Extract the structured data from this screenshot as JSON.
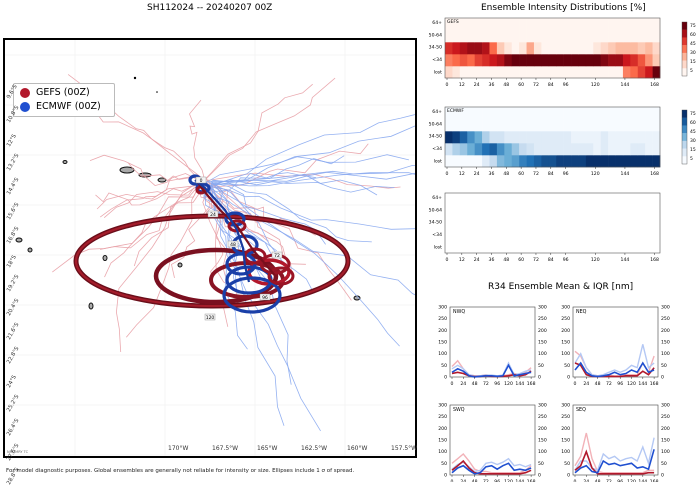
{
  "map": {
    "title": "SH112024 -- 20240207 00Z",
    "legend": [
      {
        "label": "GEFS (00Z)",
        "color": "#b2182b"
      },
      {
        "label": "ECMWF (00Z)",
        "color": "#1f4fd0"
      }
    ],
    "lat_labels": [
      "9.6°S",
      "10.8°S",
      "12°S",
      "13.2°S",
      "14.4°S",
      "15.6°S",
      "16.8°S",
      "18°S",
      "19.2°S",
      "20.4°S",
      "21.6°S",
      "22.8°S",
      "24°S",
      "25.2°S",
      "26.4°S",
      "27.6°S",
      "28.8°S"
    ],
    "lon_labels": [
      "170°W",
      "167.5°W",
      "165°W",
      "162.5°W",
      "160°W",
      "157.5°W"
    ],
    "track_hour_labels": [
      "0",
      "24",
      "48",
      "72",
      "96",
      "120"
    ],
    "watermark": "NRL/MRY TC"
  },
  "intensity": {
    "title": "Ensemble Intensity Distributions [%]",
    "y_labels": [
      "64+",
      "50-64",
      "34-50",
      "<34",
      "lost"
    ],
    "x_ticks": [
      "0",
      "12",
      "24",
      "36",
      "48",
      "60",
      "72",
      "84",
      "96",
      "120",
      "144",
      "168"
    ],
    "panels": [
      {
        "name": "GEFS"
      },
      {
        "name": "ECMWF"
      },
      {
        "name": ""
      }
    ],
    "colorbar_ticks": [
      "75",
      "60",
      "45",
      "30",
      "15",
      "5"
    ]
  },
  "r34": {
    "title": "R34 Ensemble Mean & IQR [nm]",
    "y_ticks": [
      "300",
      "250",
      "200",
      "150",
      "100",
      "50",
      "0"
    ],
    "x_ticks": [
      "0",
      "24",
      "48",
      "72",
      "96",
      "120",
      "144",
      "168"
    ],
    "quadrants": [
      "NWQ",
      "NEQ",
      "SWQ",
      "SEQ"
    ]
  },
  "footer": "For model diagnostic purposes. Global ensembles are generally not reliable for intensity or size. Ellipses include 1 σ of spread.",
  "chart_data": [
    {
      "type": "heatmap",
      "title": "GEFS",
      "xlabel": "forecast hour",
      "x": [
        0,
        6,
        12,
        18,
        24,
        30,
        36,
        42,
        48,
        54,
        60,
        66,
        72,
        78,
        84,
        90,
        96,
        102,
        108,
        114,
        120,
        126,
        132,
        138,
        144,
        150,
        156,
        162,
        168
      ],
      "rows": [
        "lost",
        "<34",
        "34-50",
        "50-64",
        "64+"
      ],
      "values": [
        [
          10,
          5,
          0,
          0,
          0,
          0,
          0,
          0,
          0,
          0,
          0,
          0,
          0,
          0,
          0,
          0,
          0,
          0,
          0,
          0,
          0,
          0,
          0,
          0,
          35,
          40,
          50,
          60,
          80
        ],
        [
          35,
          40,
          45,
          40,
          50,
          55,
          60,
          65,
          75,
          80,
          80,
          80,
          80,
          80,
          80,
          80,
          80,
          80,
          80,
          80,
          80,
          75,
          70,
          70,
          60,
          55,
          45,
          30,
          15
        ],
        [
          55,
          60,
          65,
          70,
          70,
          65,
          40,
          15,
          5,
          0,
          5,
          25,
          5,
          0,
          0,
          0,
          0,
          0,
          0,
          0,
          5,
          10,
          15,
          20,
          20,
          20,
          15,
          20,
          10
        ],
        [
          0,
          0,
          0,
          0,
          0,
          0,
          0,
          0,
          0,
          0,
          0,
          0,
          0,
          0,
          0,
          0,
          0,
          0,
          0,
          0,
          0,
          0,
          0,
          0,
          0,
          0,
          0,
          0,
          0
        ],
        [
          0,
          0,
          0,
          0,
          0,
          0,
          0,
          0,
          0,
          0,
          0,
          0,
          0,
          0,
          0,
          0,
          0,
          0,
          0,
          0,
          0,
          0,
          0,
          0,
          0,
          0,
          0,
          0,
          0
        ]
      ],
      "colorbar": [
        5,
        15,
        30,
        45,
        60,
        75
      ]
    },
    {
      "type": "heatmap",
      "title": "ECMWF",
      "xlabel": "forecast hour",
      "x": [
        0,
        6,
        12,
        18,
        24,
        30,
        36,
        42,
        48,
        54,
        60,
        66,
        72,
        78,
        84,
        90,
        96,
        102,
        108,
        114,
        120,
        126,
        132,
        138,
        144,
        150,
        156,
        162,
        168
      ],
      "rows": [
        "lost",
        "<34",
        "34-50",
        "50-64",
        "64+"
      ],
      "values": [
        [
          0,
          0,
          0,
          0,
          0,
          10,
          20,
          35,
          40,
          45,
          55,
          60,
          65,
          70,
          70,
          75,
          75,
          75,
          75,
          80,
          80,
          80,
          80,
          80,
          80,
          80,
          80,
          80,
          80
        ],
        [
          15,
          25,
          30,
          40,
          50,
          60,
          65,
          50,
          40,
          30,
          20,
          15,
          10,
          10,
          10,
          10,
          10,
          10,
          10,
          10,
          5,
          10,
          5,
          5,
          5,
          10,
          10,
          5,
          5
        ],
        [
          85,
          75,
          65,
          50,
          40,
          25,
          15,
          15,
          10,
          10,
          10,
          10,
          10,
          10,
          10,
          10,
          10,
          5,
          5,
          5,
          5,
          10,
          5,
          5,
          5,
          5,
          5,
          5,
          5
        ],
        [
          0,
          0,
          0,
          0,
          0,
          0,
          0,
          0,
          0,
          0,
          0,
          0,
          0,
          0,
          0,
          0,
          0,
          0,
          0,
          0,
          0,
          0,
          0,
          0,
          0,
          0,
          0,
          0,
          0
        ],
        [
          0,
          0,
          0,
          0,
          0,
          0,
          0,
          0,
          0,
          0,
          0,
          0,
          0,
          0,
          0,
          0,
          0,
          0,
          0,
          0,
          0,
          0,
          0,
          0,
          0,
          0,
          0,
          0,
          0
        ]
      ],
      "colorbar": [
        5,
        15,
        30,
        45,
        60,
        75
      ]
    },
    {
      "type": "line",
      "title": "R34 Ensemble Mean & IQR [nm]",
      "x": [
        0,
        12,
        24,
        36,
        48,
        60,
        72,
        84,
        96,
        108,
        120,
        132,
        144,
        156,
        168
      ],
      "ylim": [
        0,
        300
      ],
      "quadrants": [
        {
          "name": "NWQ",
          "series": [
            {
              "name": "GEFS mean",
              "values": [
                15,
                20,
                15,
                5,
                2,
                2,
                5,
                3,
                2,
                3,
                5,
                10,
                5,
                10,
                25
              ]
            },
            {
              "name": "GEFS IQR",
              "values": [
                45,
                70,
                35,
                10,
                5,
                5,
                10,
                5,
                5,
                5,
                10,
                15,
                10,
                20,
                40
              ]
            },
            {
              "name": "ECMWF mean",
              "values": [
                20,
                35,
                25,
                5,
                0,
                3,
                5,
                5,
                3,
                5,
                50,
                5,
                10,
                15,
                20
              ]
            },
            {
              "name": "ECMWF IQR",
              "values": [
                35,
                50,
                35,
                10,
                5,
                5,
                8,
                8,
                5,
                8,
                60,
                10,
                15,
                25,
                30
              ]
            }
          ]
        },
        {
          "name": "NEQ",
          "series": [
            {
              "name": "GEFS mean",
              "values": [
                60,
                50,
                10,
                3,
                2,
                2,
                3,
                2,
                2,
                5,
                5,
                5,
                25,
                10,
                40
              ]
            },
            {
              "name": "GEFS IQR",
              "values": [
                110,
                90,
                40,
                10,
                5,
                5,
                8,
                5,
                5,
                10,
                10,
                10,
                60,
                20,
                90
              ]
            },
            {
              "name": "ECMWF mean",
              "values": [
                30,
                60,
                20,
                5,
                2,
                5,
                10,
                20,
                10,
                15,
                30,
                20,
                60,
                20,
                30
              ]
            },
            {
              "name": "ECMWF IQR",
              "values": [
                60,
                100,
                40,
                10,
                5,
                10,
                20,
                30,
                20,
                30,
                50,
                40,
                140,
                40,
                60
              ]
            }
          ]
        },
        {
          "name": "SWQ",
          "series": [
            {
              "name": "GEFS mean",
              "values": [
                20,
                40,
                60,
                30,
                10,
                5,
                5,
                5,
                5,
                5,
                5,
                5,
                5,
                10,
                20
              ]
            },
            {
              "name": "GEFS IQR",
              "values": [
                50,
                70,
                90,
                60,
                25,
                15,
                15,
                10,
                10,
                10,
                10,
                10,
                10,
                20,
                40
              ]
            },
            {
              "name": "ECMWF mean",
              "values": [
                10,
                30,
                40,
                20,
                5,
                10,
                35,
                40,
                25,
                40,
                50,
                20,
                25,
                20,
                30
              ]
            },
            {
              "name": "ECMWF IQR",
              "values": [
                25,
                45,
                55,
                35,
                15,
                20,
                50,
                55,
                45,
                55,
                70,
                40,
                45,
                35,
                45
              ]
            }
          ]
        },
        {
          "name": "SEQ",
          "series": [
            {
              "name": "GEFS mean",
              "values": [
                20,
                40,
                100,
                30,
                5,
                5,
                5,
                5,
                5,
                5,
                5,
                5,
                5,
                10,
                10
              ]
            },
            {
              "name": "GEFS IQR",
              "values": [
                40,
                80,
                180,
                70,
                15,
                10,
                10,
                10,
                10,
                10,
                10,
                10,
                10,
                20,
                20
              ]
            },
            {
              "name": "ECMWF mean",
              "values": [
                10,
                30,
                40,
                15,
                10,
                60,
                45,
                50,
                40,
                45,
                50,
                30,
                35,
                25,
                110
              ]
            },
            {
              "name": "ECMWF IQR",
              "values": [
                20,
                60,
                60,
                30,
                20,
                90,
                70,
                80,
                60,
                70,
                75,
                60,
                120,
                50,
                160
              ]
            }
          ]
        }
      ]
    }
  ]
}
